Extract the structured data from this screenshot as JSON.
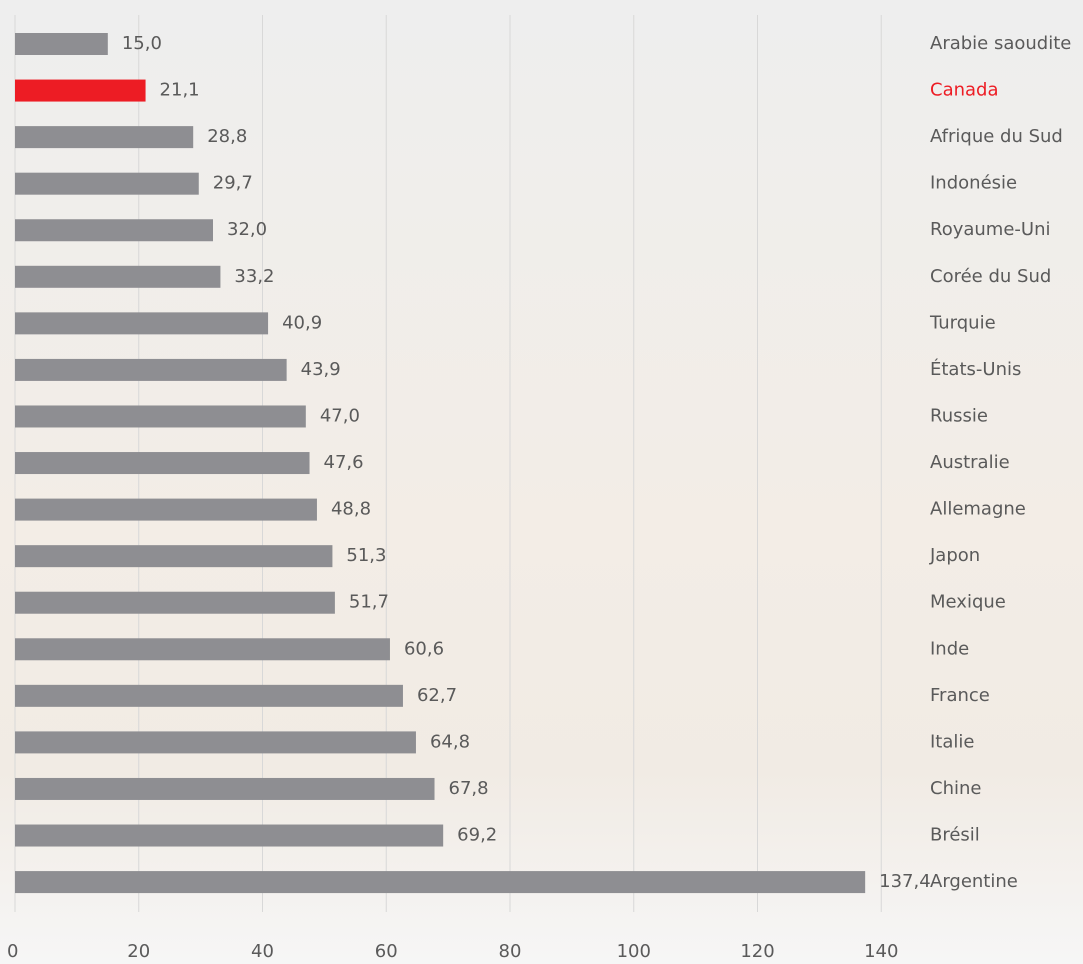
{
  "chart_data": {
    "type": "bar",
    "orientation": "horizontal",
    "categories": [
      "Arabie saoudite",
      "Canada",
      "Afrique du Sud",
      "Indonésie",
      "Royaume-Uni",
      "Corée du Sud",
      "Turquie",
      "États-Unis",
      "Russie",
      "Australie",
      "Allemagne",
      "Japon",
      "Mexique",
      "Inde",
      "France",
      "Italie",
      "Chine",
      "Brésil",
      "Argentine"
    ],
    "values": [
      15.0,
      21.1,
      28.8,
      29.7,
      32.0,
      33.2,
      40.9,
      43.9,
      47.0,
      47.6,
      48.8,
      51.3,
      51.7,
      60.6,
      62.7,
      64.8,
      67.8,
      69.2,
      137.4
    ],
    "value_labels": [
      "15,0",
      "21,1",
      "28,8",
      "29,7",
      "32,0",
      "33,2",
      "40,9",
      "43,9",
      "47,0",
      "47,6",
      "48,8",
      "51,3",
      "51,7",
      "60,6",
      "62,7",
      "64,8",
      "67,8",
      "69,2",
      "137,4"
    ],
    "colors": [
      "#8e8e92",
      "#ed1c24",
      "#8e8e92",
      "#8e8e92",
      "#8e8e92",
      "#8e8e92",
      "#8e8e92",
      "#8e8e92",
      "#8e8e92",
      "#8e8e92",
      "#8e8e92",
      "#8e8e92",
      "#8e8e92",
      "#8e8e92",
      "#8e8e92",
      "#8e8e92",
      "#8e8e92",
      "#8e8e92",
      "#8e8e92"
    ],
    "xlim": [
      0,
      160
    ],
    "xticks": [
      0,
      20,
      40,
      60,
      80,
      100,
      120,
      140
    ],
    "grid": true
  }
}
